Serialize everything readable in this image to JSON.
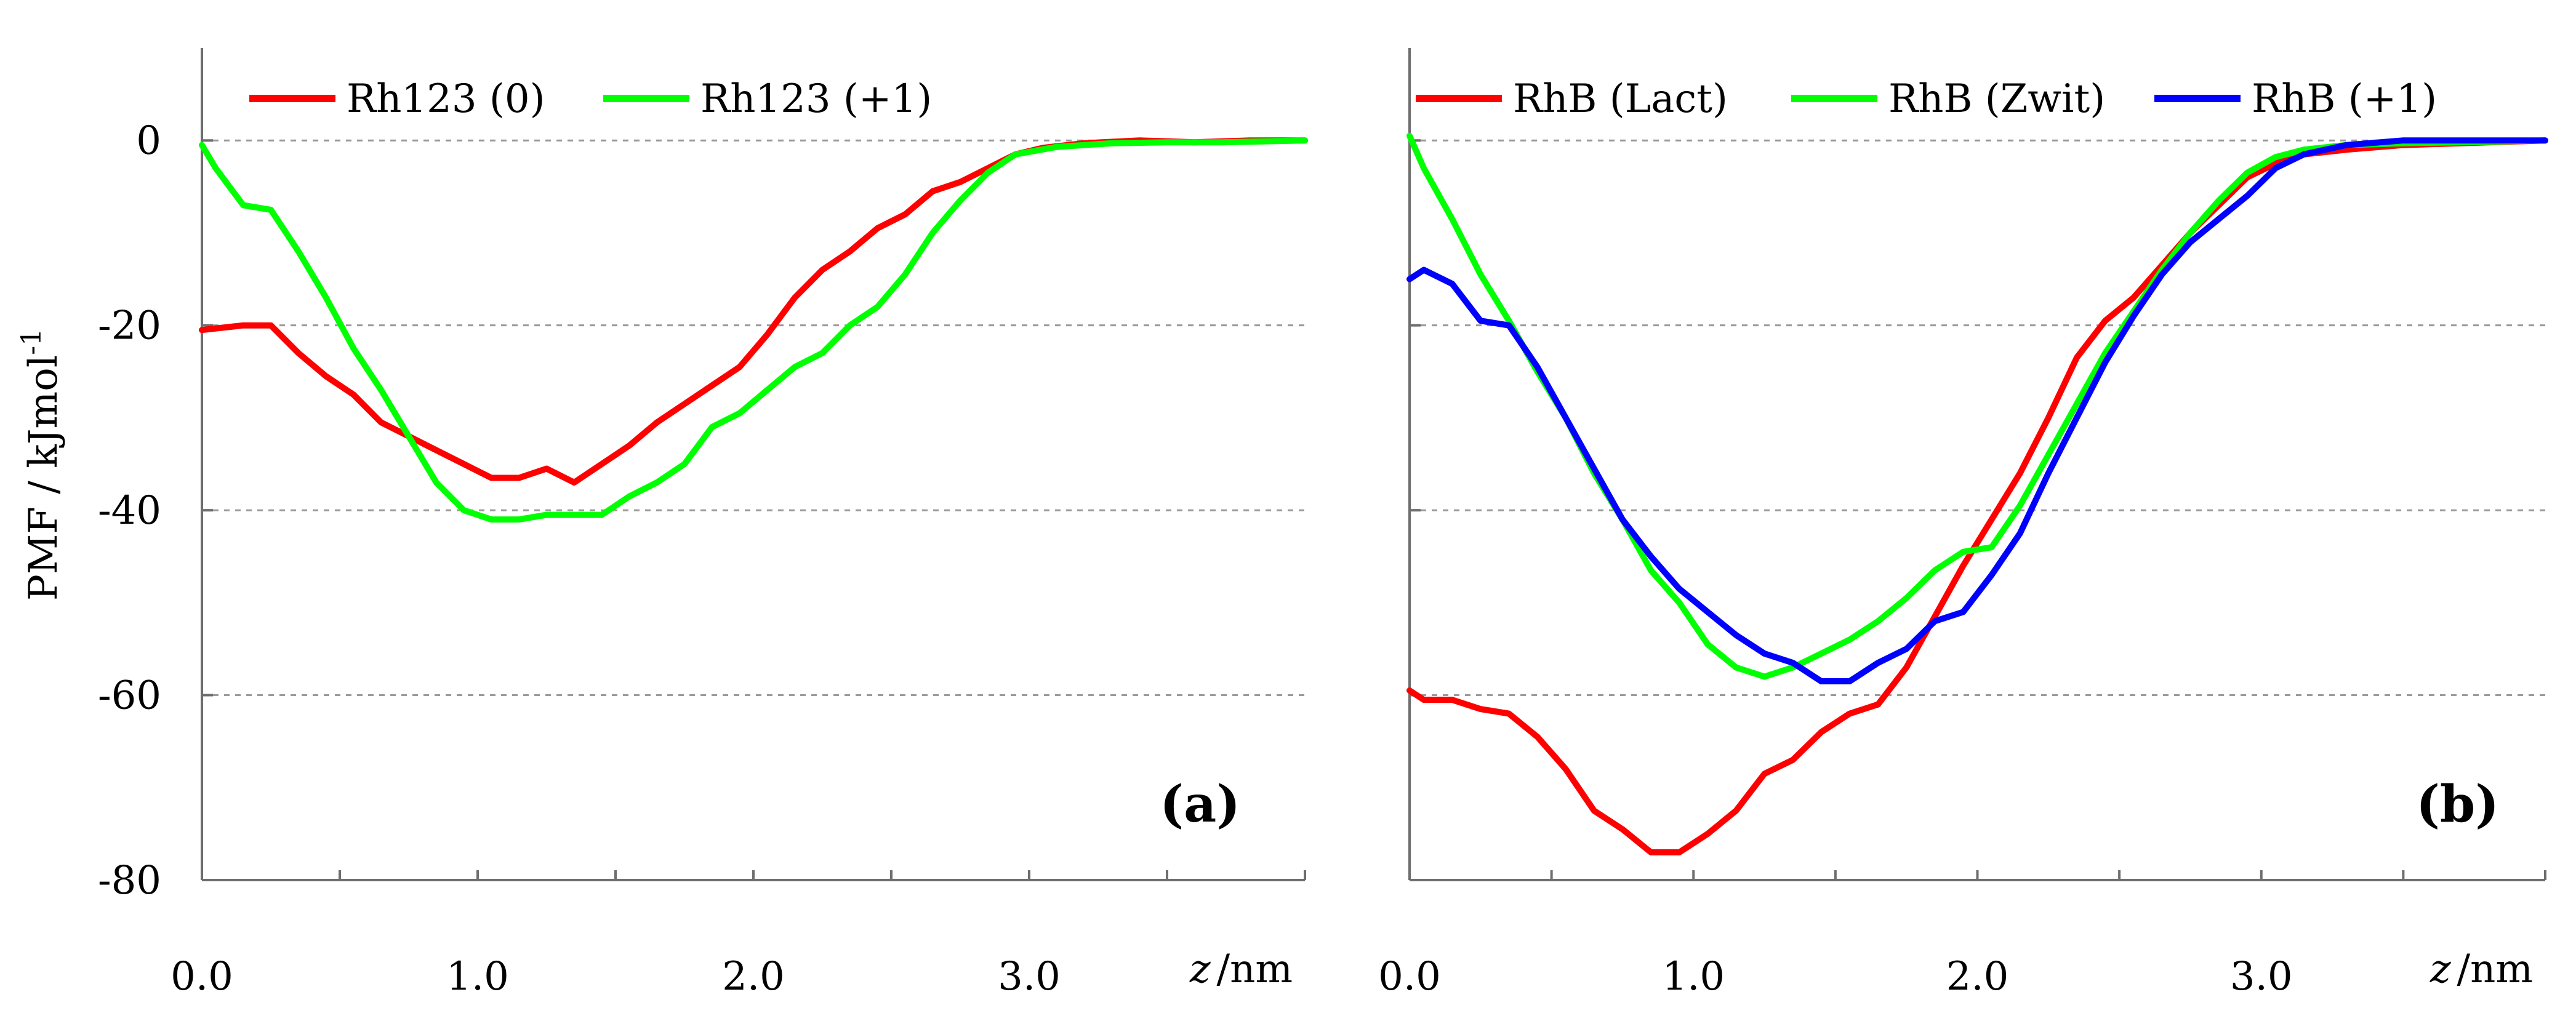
{
  "figure": {
    "y_axis_title": "PMF / kJmol",
    "y_axis_title_sup": "-1",
    "x_axis_unit_var": "z",
    "x_axis_unit": "/nm"
  },
  "chart_data": [
    {
      "type": "line",
      "panel_tag": "(a)",
      "xlabel": "z /nm",
      "ylabel": "PMF / kJmol-1",
      "xlim": [
        0,
        4.0
      ],
      "ylim": [
        -80,
        10
      ],
      "x_ticks": [
        "0.0",
        "1.0",
        "2.0",
        "3.0"
      ],
      "y_ticks": [
        "0",
        "-20",
        "-40",
        "-60",
        "-80"
      ],
      "grid_y": [
        0,
        -20,
        -40,
        -60
      ],
      "legend_position": "top-left",
      "series": [
        {
          "name": "Rh123 (0)",
          "color": "#ff0000",
          "x": [
            0,
            0.15,
            0.25,
            0.35,
            0.45,
            0.55,
            0.65,
            0.75,
            0.85,
            0.95,
            1.05,
            1.15,
            1.25,
            1.35,
            1.45,
            1.55,
            1.65,
            1.75,
            1.85,
            1.95,
            2.05,
            2.15,
            2.25,
            2.35,
            2.45,
            2.55,
            2.65,
            2.75,
            2.85,
            2.95,
            3.05,
            3.2,
            3.4,
            3.6,
            3.8,
            4.0
          ],
          "y": [
            -20.5,
            -20,
            -20,
            -23,
            -25.5,
            -27.5,
            -30.5,
            -32,
            -33.5,
            -35,
            -36.5,
            -36.5,
            -35.5,
            -37,
            -35,
            -33,
            -30.5,
            -28.5,
            -26.5,
            -24.5,
            -21,
            -17,
            -14,
            -12,
            -9.5,
            -8,
            -5.5,
            -4.5,
            -3,
            -1.5,
            -0.8,
            -0.3,
            0,
            -0.2,
            0,
            0
          ]
        },
        {
          "name": "Rh123 (+1)",
          "color": "#00ff00",
          "x": [
            0,
            0.05,
            0.15,
            0.25,
            0.35,
            0.45,
            0.55,
            0.65,
            0.75,
            0.85,
            0.95,
            1.05,
            1.15,
            1.25,
            1.35,
            1.45,
            1.55,
            1.65,
            1.75,
            1.85,
            1.95,
            2.05,
            2.15,
            2.25,
            2.35,
            2.45,
            2.55,
            2.65,
            2.75,
            2.85,
            2.95,
            3.1,
            3.3,
            3.5,
            3.7,
            4.0
          ],
          "y": [
            -0.5,
            -3,
            -7,
            -7.5,
            -12,
            -17,
            -22.5,
            -27,
            -32,
            -37,
            -40,
            -41,
            -41,
            -40.5,
            -40.5,
            -40.5,
            -38.5,
            -37,
            -35,
            -31,
            -29.5,
            -27,
            -24.5,
            -23,
            -20,
            -18,
            -14.5,
            -10,
            -6.5,
            -3.5,
            -1.5,
            -0.7,
            -0.3,
            -0.2,
            -0.2,
            0
          ]
        }
      ]
    },
    {
      "type": "line",
      "panel_tag": "(b)",
      "xlabel": "z /nm",
      "ylabel": "",
      "xlim": [
        0,
        4.0
      ],
      "ylim": [
        -80,
        10
      ],
      "x_ticks": [
        "0.0",
        "1.0",
        "2.0",
        "3.0"
      ],
      "y_ticks": [],
      "grid_y": [
        0,
        -20,
        -40,
        -60
      ],
      "legend_position": "top",
      "series": [
        {
          "name": "RhB (Lact)",
          "color": "#ff0000",
          "x": [
            0,
            0.05,
            0.15,
            0.25,
            0.35,
            0.45,
            0.55,
            0.65,
            0.75,
            0.85,
            0.95,
            1.05,
            1.15,
            1.25,
            1.35,
            1.45,
            1.55,
            1.65,
            1.75,
            1.85,
            1.95,
            2.05,
            2.15,
            2.25,
            2.35,
            2.45,
            2.55,
            2.65,
            2.75,
            2.85,
            2.95,
            3.05,
            3.15,
            3.3,
            3.5,
            3.7,
            4.0
          ],
          "y": [
            -59.5,
            -60.5,
            -60.5,
            -61.5,
            -62,
            -64.5,
            -68,
            -72.5,
            -74.5,
            -77,
            -77,
            -75,
            -72.5,
            -68.5,
            -67,
            -64,
            -62,
            -61,
            -57,
            -51.5,
            -46,
            -41,
            -36,
            -30,
            -23.5,
            -19.5,
            -17,
            -13.5,
            -10,
            -7,
            -4,
            -2.5,
            -1.5,
            -1,
            -0.5,
            -0.3,
            0
          ]
        },
        {
          "name": "RhB (Zwit)",
          "color": "#00ff00",
          "x": [
            0,
            0.05,
            0.15,
            0.25,
            0.35,
            0.45,
            0.55,
            0.65,
            0.75,
            0.85,
            0.95,
            1.05,
            1.15,
            1.25,
            1.35,
            1.45,
            1.55,
            1.65,
            1.75,
            1.85,
            1.95,
            2.05,
            2.15,
            2.25,
            2.35,
            2.45,
            2.55,
            2.65,
            2.75,
            2.85,
            2.95,
            3.05,
            3.15,
            3.3,
            3.5,
            3.7,
            4.0
          ],
          "y": [
            0.5,
            -3,
            -8.5,
            -14.5,
            -19.5,
            -25,
            -30,
            -36,
            -41,
            -46.5,
            -50,
            -54.5,
            -57,
            -58,
            -57,
            -55.5,
            -54,
            -52,
            -49.5,
            -46.5,
            -44.5,
            -44,
            -39.5,
            -34,
            -28.5,
            -23,
            -18.5,
            -14,
            -10,
            -6.5,
            -3.5,
            -1.8,
            -1,
            -0.5,
            -0.3,
            -0.2,
            0
          ]
        },
        {
          "name": "RhB (+1)",
          "color": "#0000ff",
          "x": [
            0,
            0.05,
            0.15,
            0.25,
            0.35,
            0.45,
            0.55,
            0.65,
            0.75,
            0.85,
            0.95,
            1.05,
            1.15,
            1.25,
            1.35,
            1.45,
            1.55,
            1.65,
            1.75,
            1.85,
            1.95,
            2.05,
            2.15,
            2.25,
            2.35,
            2.45,
            2.55,
            2.65,
            2.75,
            2.85,
            2.95,
            3.05,
            3.15,
            3.3,
            3.5,
            3.7,
            3.9,
            4.0
          ],
          "y": [
            -15,
            -14,
            -15.5,
            -19.5,
            -20,
            -24.5,
            -30,
            -35.5,
            -41,
            -45,
            -48.5,
            -51,
            -53.5,
            -55.5,
            -56.5,
            -58.5,
            -58.5,
            -56.5,
            -55,
            -52,
            -51,
            -47,
            -42.5,
            -36,
            -30,
            -24,
            -19,
            -14.5,
            -11,
            -8.5,
            -6,
            -3,
            -1.5,
            -0.5,
            0,
            0,
            0,
            0
          ]
        }
      ]
    }
  ]
}
